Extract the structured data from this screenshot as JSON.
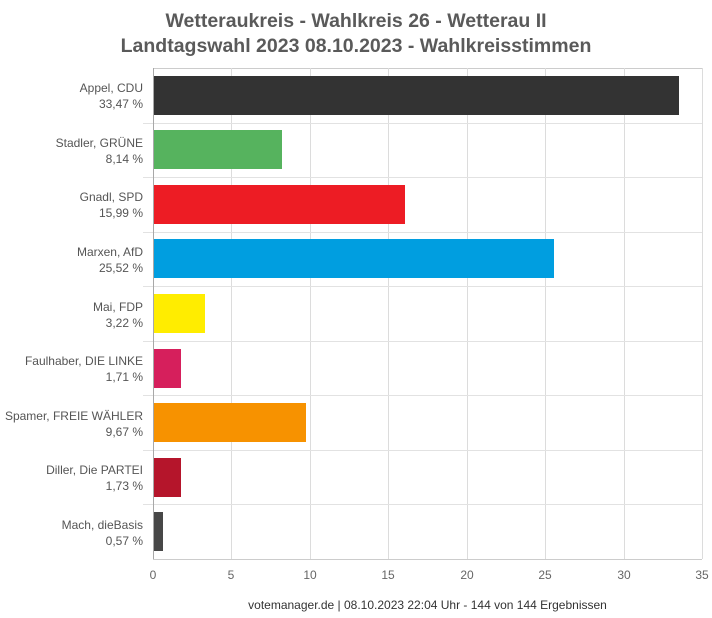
{
  "title": {
    "line1": "Wetteraukreis - Wahlkreis 26 - Wetterau II",
    "line2": "Landtagswahl 2023 08.10.2023  - Wahlkreisstimmen"
  },
  "footer": "votemanager.de | 08.10.2023 22:04 Uhr - 144 von 144 Ergebnissen",
  "axis": {
    "ticks": [
      "0",
      "5",
      "10",
      "15",
      "20",
      "25",
      "30",
      "35"
    ]
  },
  "bars": [
    {
      "name": "Appel, CDU",
      "pct_label": "33,47 %",
      "value": 33.47,
      "color": "#333333"
    },
    {
      "name": "Stadler, GRÜNE",
      "pct_label": "8,14 %",
      "value": 8.14,
      "color": "#56b35e"
    },
    {
      "name": "Gnadl, SPD",
      "pct_label": "15,99 %",
      "value": 15.99,
      "color": "#ed1c24"
    },
    {
      "name": "Marxen, AfD",
      "pct_label": "25,52 %",
      "value": 25.52,
      "color": "#009ee0"
    },
    {
      "name": "Mai, FDP",
      "pct_label": "3,22 %",
      "value": 3.22,
      "color": "#ffed00"
    },
    {
      "name": "Faulhaber, DIE LINKE",
      "pct_label": "1,71 %",
      "value": 1.71,
      "color": "#d61f5c"
    },
    {
      "name": "Spamer, FREIE WÄHLER",
      "pct_label": "9,67 %",
      "value": 9.67,
      "color": "#f79200"
    },
    {
      "name": "Diller, Die PARTEI",
      "pct_label": "1,73 %",
      "value": 1.73,
      "color": "#b5152b"
    },
    {
      "name": "Mach, dieBasis",
      "pct_label": "0,57 %",
      "value": 0.57,
      "color": "#474747"
    }
  ],
  "chart_data": {
    "type": "bar",
    "orientation": "horizontal",
    "title": "Wetteraukreis - Wahlkreis 26 - Wetterau II / Landtagswahl 2023 08.10.2023  - Wahlkreisstimmen",
    "categories": [
      "Appel, CDU",
      "Stadler, GRÜNE",
      "Gnadl, SPD",
      "Marxen, AfD",
      "Mai, FDP",
      "Faulhaber, DIE LINKE",
      "Spamer, FREIE WÄHLER",
      "Diller, Die PARTEI",
      "Mach, dieBasis"
    ],
    "values": [
      33.47,
      8.14,
      15.99,
      25.52,
      3.22,
      1.71,
      9.67,
      1.73,
      0.57
    ],
    "colors": [
      "#333333",
      "#56b35e",
      "#ed1c24",
      "#009ee0",
      "#ffed00",
      "#d61f5c",
      "#f79200",
      "#b5152b",
      "#474747"
    ],
    "xlabel": "",
    "ylabel": "",
    "xlim": [
      0,
      35
    ],
    "xticks": [
      0,
      5,
      10,
      15,
      20,
      25,
      30,
      35
    ],
    "grid": true,
    "legend": "none",
    "annotations": [
      "votemanager.de | 08.10.2023 22:04 Uhr - 144 von 144 Ergebnissen"
    ]
  }
}
